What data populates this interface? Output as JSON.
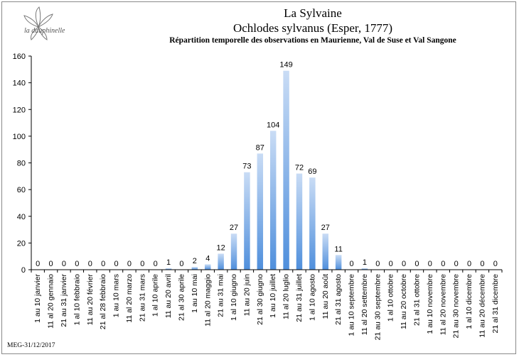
{
  "header": {
    "logo_text": "la dauphinelle",
    "title": "La Sylvaine",
    "subtitle": "Ochlodes sylvanus (Esper, 1777)",
    "caption": "Répartition temporelle des observations en Maurienne, Val de Suse et Val Sangone"
  },
  "footer": {
    "credit": "MEG-31/12/2017"
  },
  "colors": {
    "bar_top": "#c9dcf5",
    "bar_bottom": "#4f8fdc"
  },
  "chart_data": {
    "type": "bar",
    "title": "La Sylvaine",
    "xlabel": "",
    "ylabel": "",
    "ylim": [
      0,
      160
    ],
    "yticks": [
      0,
      20,
      40,
      60,
      80,
      100,
      120,
      140,
      160
    ],
    "grid": false,
    "categories": [
      "1 au 10 janvier",
      "11 al 20 gennaio",
      "21 au 31 janvier",
      "1 al 10 febbraio",
      "11 au 20 février",
      "21 al 28 febbraio",
      "1 au 10 mars",
      "11 al 20 marzo",
      "21 au 31 mars",
      "1 al 10 aprile",
      "11 au 20 avril",
      "21 al 30 aprile",
      "1 au 10 mai",
      "11 al 20 maggio",
      "21 au 31 mai",
      "1 al 10 giugno",
      "11 au 20 juin",
      "21 al 30 giugno",
      "1 au 10 juillet",
      "11 al 20 luglio",
      "21 au 31 juillet",
      "1 al 10 agosto",
      "11 au 20 août",
      "21 al 31 agosto",
      "1 au 10 septembre",
      "11 al 20 settembre",
      "21 au 30 septembre",
      "1 al 10 ottobre",
      "11 au 20 octobre",
      "21 al 31 ottobre",
      "1 au 10 novembre",
      "11 al 20 novembre",
      "21 au 30 novembre",
      "1 al 10 dicembre",
      "11 au 20 décembre",
      "21 al 31 dicembre"
    ],
    "values": [
      0,
      0,
      0,
      0,
      0,
      0,
      0,
      0,
      0,
      0,
      1,
      0,
      2,
      4,
      12,
      27,
      73,
      87,
      104,
      149,
      72,
      69,
      27,
      11,
      0,
      1,
      0,
      0,
      0,
      0,
      0,
      0,
      0,
      0,
      0,
      0
    ]
  }
}
